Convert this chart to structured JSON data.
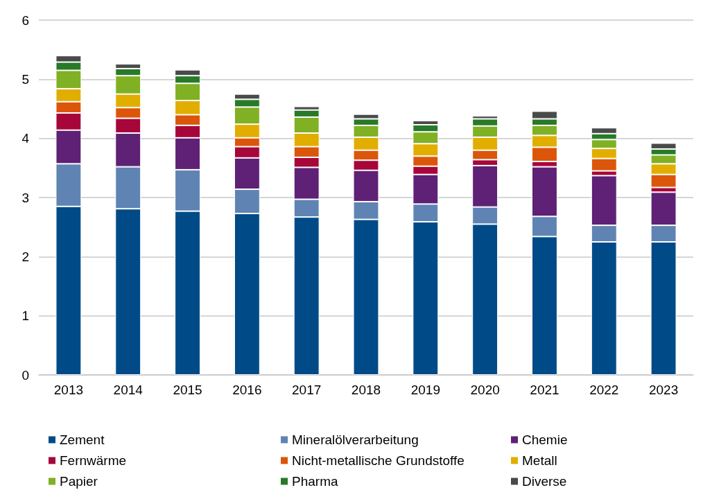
{
  "chart_data": {
    "type": "bar",
    "stacked": true,
    "categories": [
      "2013",
      "2014",
      "2015",
      "2016",
      "2017",
      "2018",
      "2019",
      "2020",
      "2021",
      "2022",
      "2023"
    ],
    "series": [
      {
        "name": "Zement",
        "color": "#004b87",
        "values": [
          2.85,
          2.81,
          2.77,
          2.73,
          2.67,
          2.63,
          2.59,
          2.55,
          2.34,
          2.25,
          2.25
        ]
      },
      {
        "name": "Mineralölverarbeitung",
        "color": "#5f84b3",
        "values": [
          0.72,
          0.71,
          0.7,
          0.41,
          0.3,
          0.3,
          0.3,
          0.29,
          0.34,
          0.28,
          0.28
        ]
      },
      {
        "name": "Chemie",
        "color": "#5e2176",
        "values": [
          0.57,
          0.57,
          0.54,
          0.53,
          0.54,
          0.53,
          0.5,
          0.7,
          0.84,
          0.84,
          0.56
        ]
      },
      {
        "name": "Fernwärme",
        "color": "#a6063a",
        "values": [
          0.29,
          0.25,
          0.21,
          0.19,
          0.17,
          0.17,
          0.14,
          0.1,
          0.09,
          0.08,
          0.08
        ]
      },
      {
        "name": "Nicht-metallische Grundstoffe",
        "color": "#db560b",
        "values": [
          0.19,
          0.18,
          0.18,
          0.15,
          0.18,
          0.17,
          0.17,
          0.16,
          0.24,
          0.21,
          0.22
        ]
      },
      {
        "name": "Metall",
        "color": "#e1ae00",
        "values": [
          0.22,
          0.23,
          0.24,
          0.23,
          0.23,
          0.22,
          0.21,
          0.22,
          0.2,
          0.17,
          0.18
        ]
      },
      {
        "name": "Papier",
        "color": "#80b024",
        "values": [
          0.31,
          0.31,
          0.29,
          0.29,
          0.27,
          0.2,
          0.2,
          0.19,
          0.17,
          0.15,
          0.15
        ]
      },
      {
        "name": "Pharma",
        "color": "#287a28",
        "values": [
          0.14,
          0.12,
          0.13,
          0.13,
          0.12,
          0.11,
          0.12,
          0.12,
          0.11,
          0.1,
          0.1
        ]
      },
      {
        "name": "Diverse",
        "color": "#4a4a4a",
        "values": [
          0.11,
          0.08,
          0.1,
          0.09,
          0.06,
          0.08,
          0.07,
          0.05,
          0.13,
          0.1,
          0.1
        ]
      }
    ],
    "ylim": [
      0,
      6
    ],
    "yticks": [
      0,
      1,
      2,
      3,
      4,
      5,
      6
    ],
    "grid": "y",
    "legend": "bottom"
  }
}
